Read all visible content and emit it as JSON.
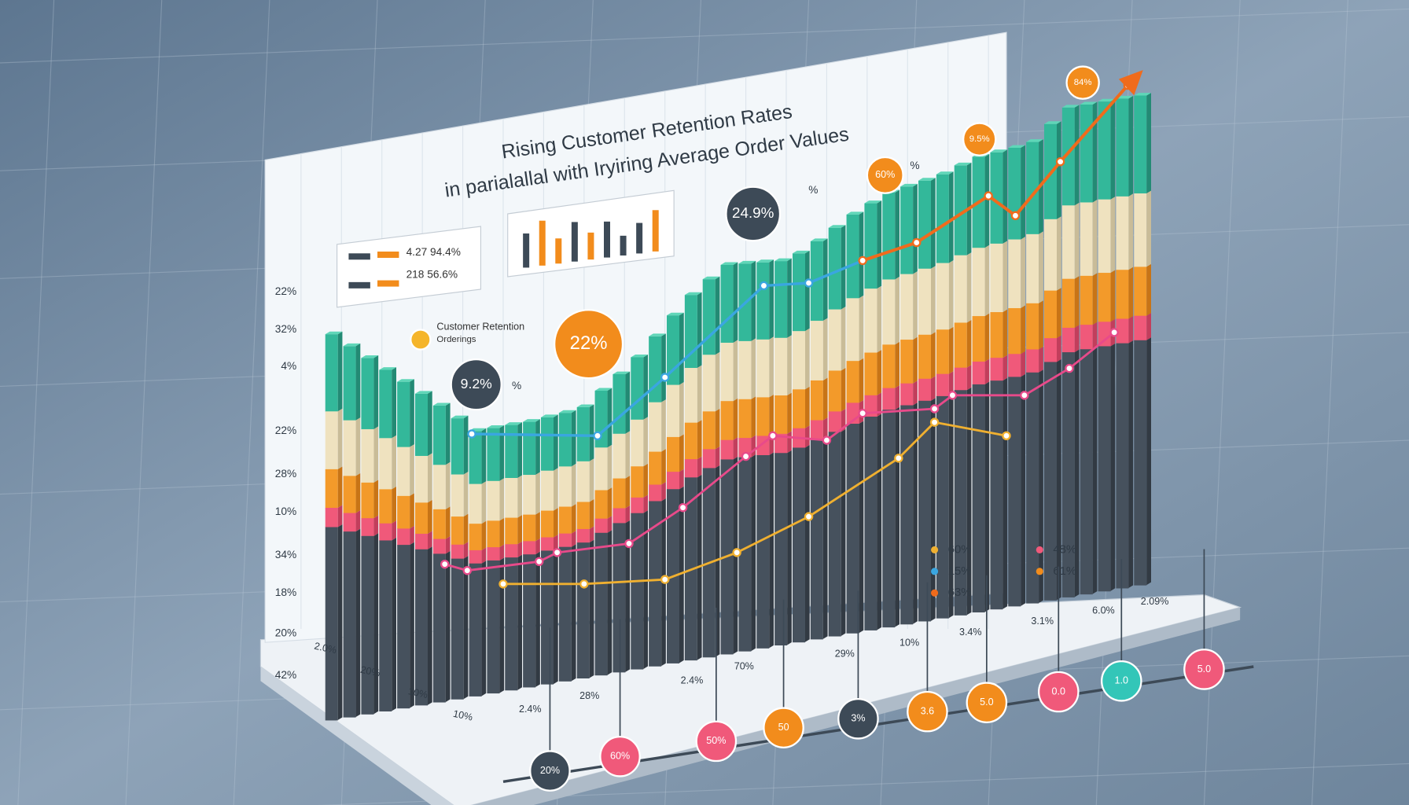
{
  "header": {
    "title": "Rising Customer Retention Rates",
    "subtitle": "in parialallal with Iryiring Average Order Values"
  },
  "axis_labels": [
    "22%",
    "32%",
    "4%",
    "22%",
    "28%",
    "10%",
    "34%",
    "18%",
    "20%",
    "42%"
  ],
  "legend": {
    "items": [
      "4.27 94.4%",
      "218 56.6%"
    ]
  },
  "series_legend": {
    "items": [
      "Customer Retention",
      "Orderings"
    ]
  },
  "bubbles": [
    {
      "label": "24.9%",
      "suffix": "%"
    },
    {
      "label": "22%"
    },
    {
      "label": "9.2%",
      "suffix": "%"
    },
    {
      "label": "60%",
      "suffix": "%"
    },
    {
      "label": "9.5%"
    },
    {
      "label": "84%"
    }
  ],
  "x_labels": [
    "2.4%",
    "28%",
    "2.4%",
    "70%",
    "29%",
    "10%",
    "3.4%",
    "3.1%",
    "6.0%",
    "2.09%"
  ],
  "base_labels": [
    "2.0%",
    "20%",
    "10%",
    "10%"
  ],
  "callouts": [
    "60%",
    "15%",
    "63%",
    "48%",
    "61%"
  ],
  "markers": [
    "20%",
    "60%",
    "50%",
    "50",
    "3%",
    "3.6",
    "5.0",
    "0.0",
    "1.0",
    "5.0"
  ]
}
